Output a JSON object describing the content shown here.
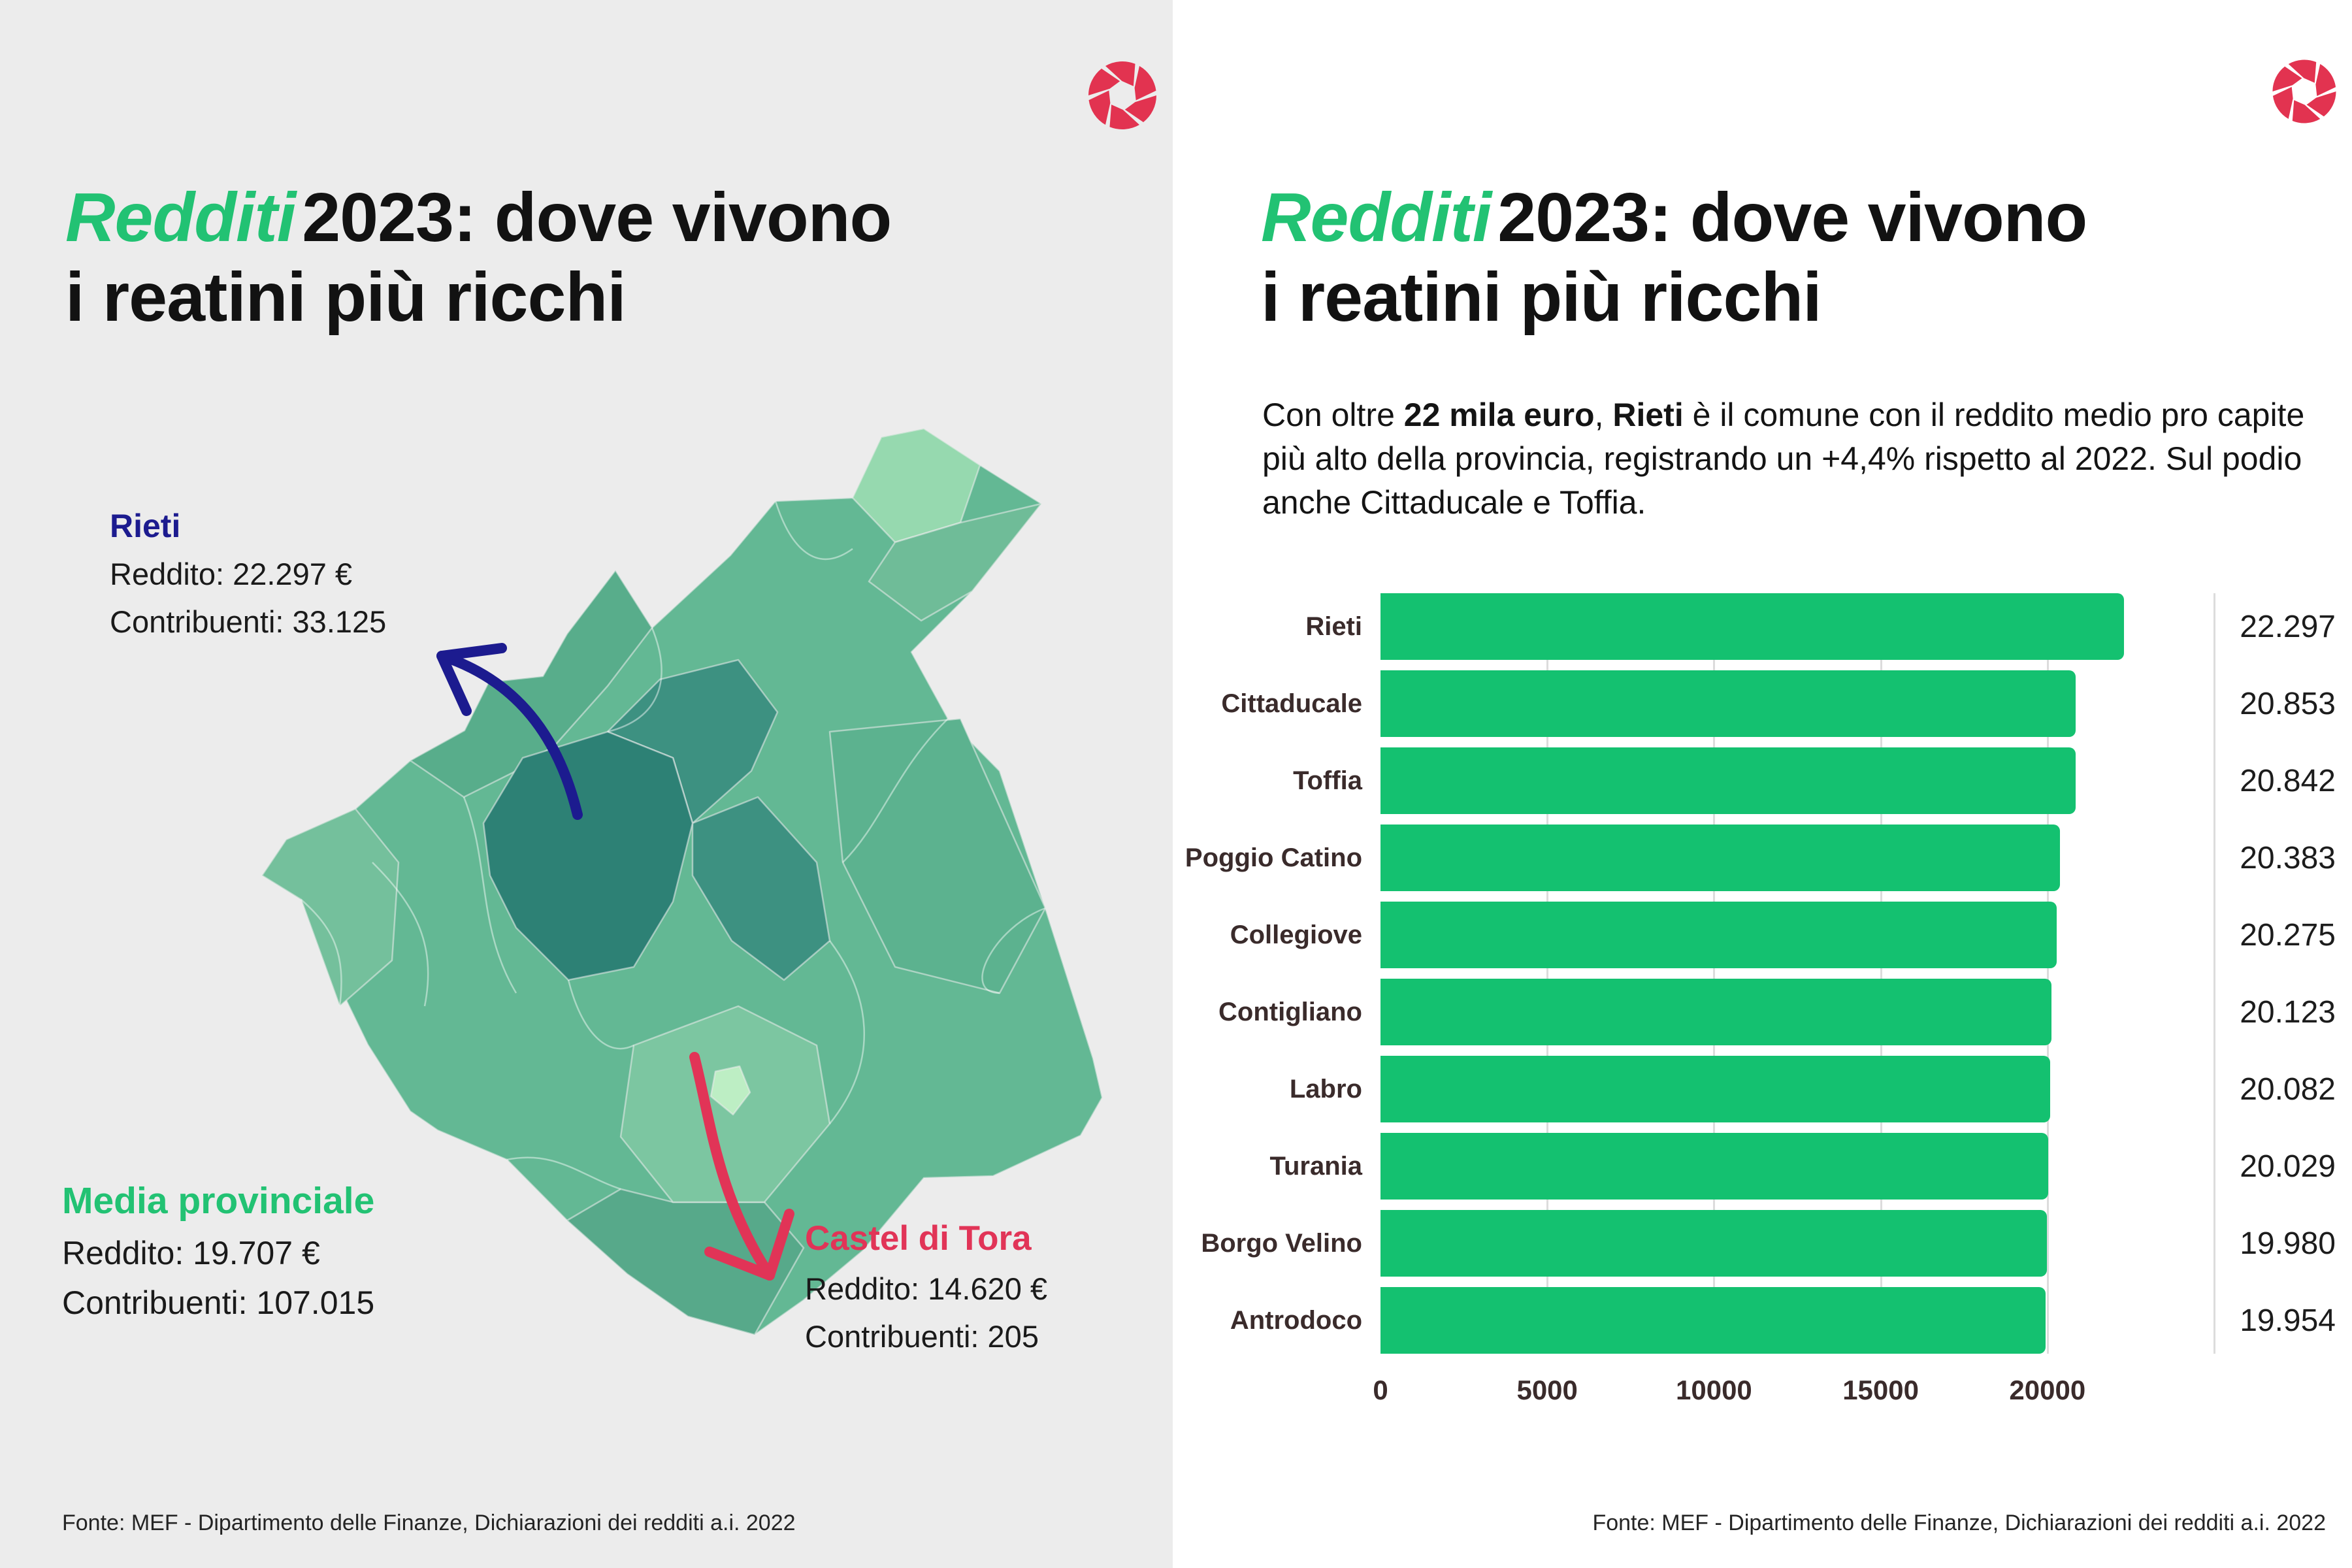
{
  "colors": {
    "accent_green": "#22c273",
    "bar_green": "#14c170",
    "navy_arrow": "#1c1b8f",
    "crimson": "#e13457",
    "logo_red": "#e23350",
    "left_bg": "#ececec",
    "grid_line": "#dcdcdc",
    "map_shades": [
      "#2d8175",
      "#3d9181",
      "#57a98a",
      "#63b894",
      "#7cc6a1",
      "#96d9af",
      "#bdeec4"
    ]
  },
  "left_panel": {
    "title": {
      "highlight": "Redditi",
      "rest": "2023: dove vivono",
      "line2": "i reatini più ricchi"
    },
    "annotations": {
      "rieti": {
        "name": "Rieti",
        "reddito": "Reddito: 22.297 €",
        "contribuenti": "Contribuenti: 33.125"
      },
      "media": {
        "name": "Media provinciale",
        "reddito": "Reddito: 19.707 €",
        "contribuenti": "Contribuenti: 107.015"
      },
      "castel": {
        "name": "Castel di Tora",
        "reddito": "Reddito: 14.620 €",
        "contribuenti": "Contribuenti: 205"
      }
    },
    "footer": "Fonte: MEF - Dipartimento delle Finanze, Dichiarazioni dei redditi a.i. 2022"
  },
  "right_panel": {
    "title": {
      "highlight": "Redditi",
      "rest": "2023: dove vivono",
      "line2": "i reatini più ricchi"
    },
    "subtitle": {
      "part1": "Con oltre ",
      "part2": "22 mila euro",
      "part3": ", ",
      "part4": "Rieti",
      "part5": " è il comune con il reddito medio pro capite più alto della provincia, registrando un +4,4% rispetto al 2022. Sul podio anche Cittaducale e Toffia."
    },
    "footer": "Fonte: MEF - Dipartimento delle Finanze, Dichiarazioni dei redditi a.i. 2022"
  },
  "chart_data": {
    "type": "bar",
    "orientation": "horizontal",
    "title": "",
    "xlabel": "",
    "ylabel": "",
    "categories": [
      "Rieti",
      "Cittaducale",
      "Toffia",
      "Poggio Catino",
      "Collegiove",
      "Contigliano",
      "Labro",
      "Turania",
      "Borgo Velino",
      "Antrodoco"
    ],
    "values": [
      22297,
      20853,
      20842,
      20383,
      20275,
      20123,
      20082,
      20029,
      19980,
      19954
    ],
    "value_labels": [
      "22.297",
      "20.853",
      "20.842",
      "20.383",
      "20.275",
      "20.123",
      "20.082",
      "20.029",
      "19.980",
      "19.954"
    ],
    "x_ticks": [
      0,
      5000,
      10000,
      15000,
      20000
    ],
    "x_tick_labels": [
      "0",
      "5000",
      "10000",
      "15000",
      "20000"
    ],
    "gridline_ticks": [
      5000,
      10000,
      15000,
      20000,
      25000
    ],
    "xlim": [
      0,
      25000
    ],
    "grid": true,
    "legend": false,
    "bar_color": "#14c170"
  }
}
